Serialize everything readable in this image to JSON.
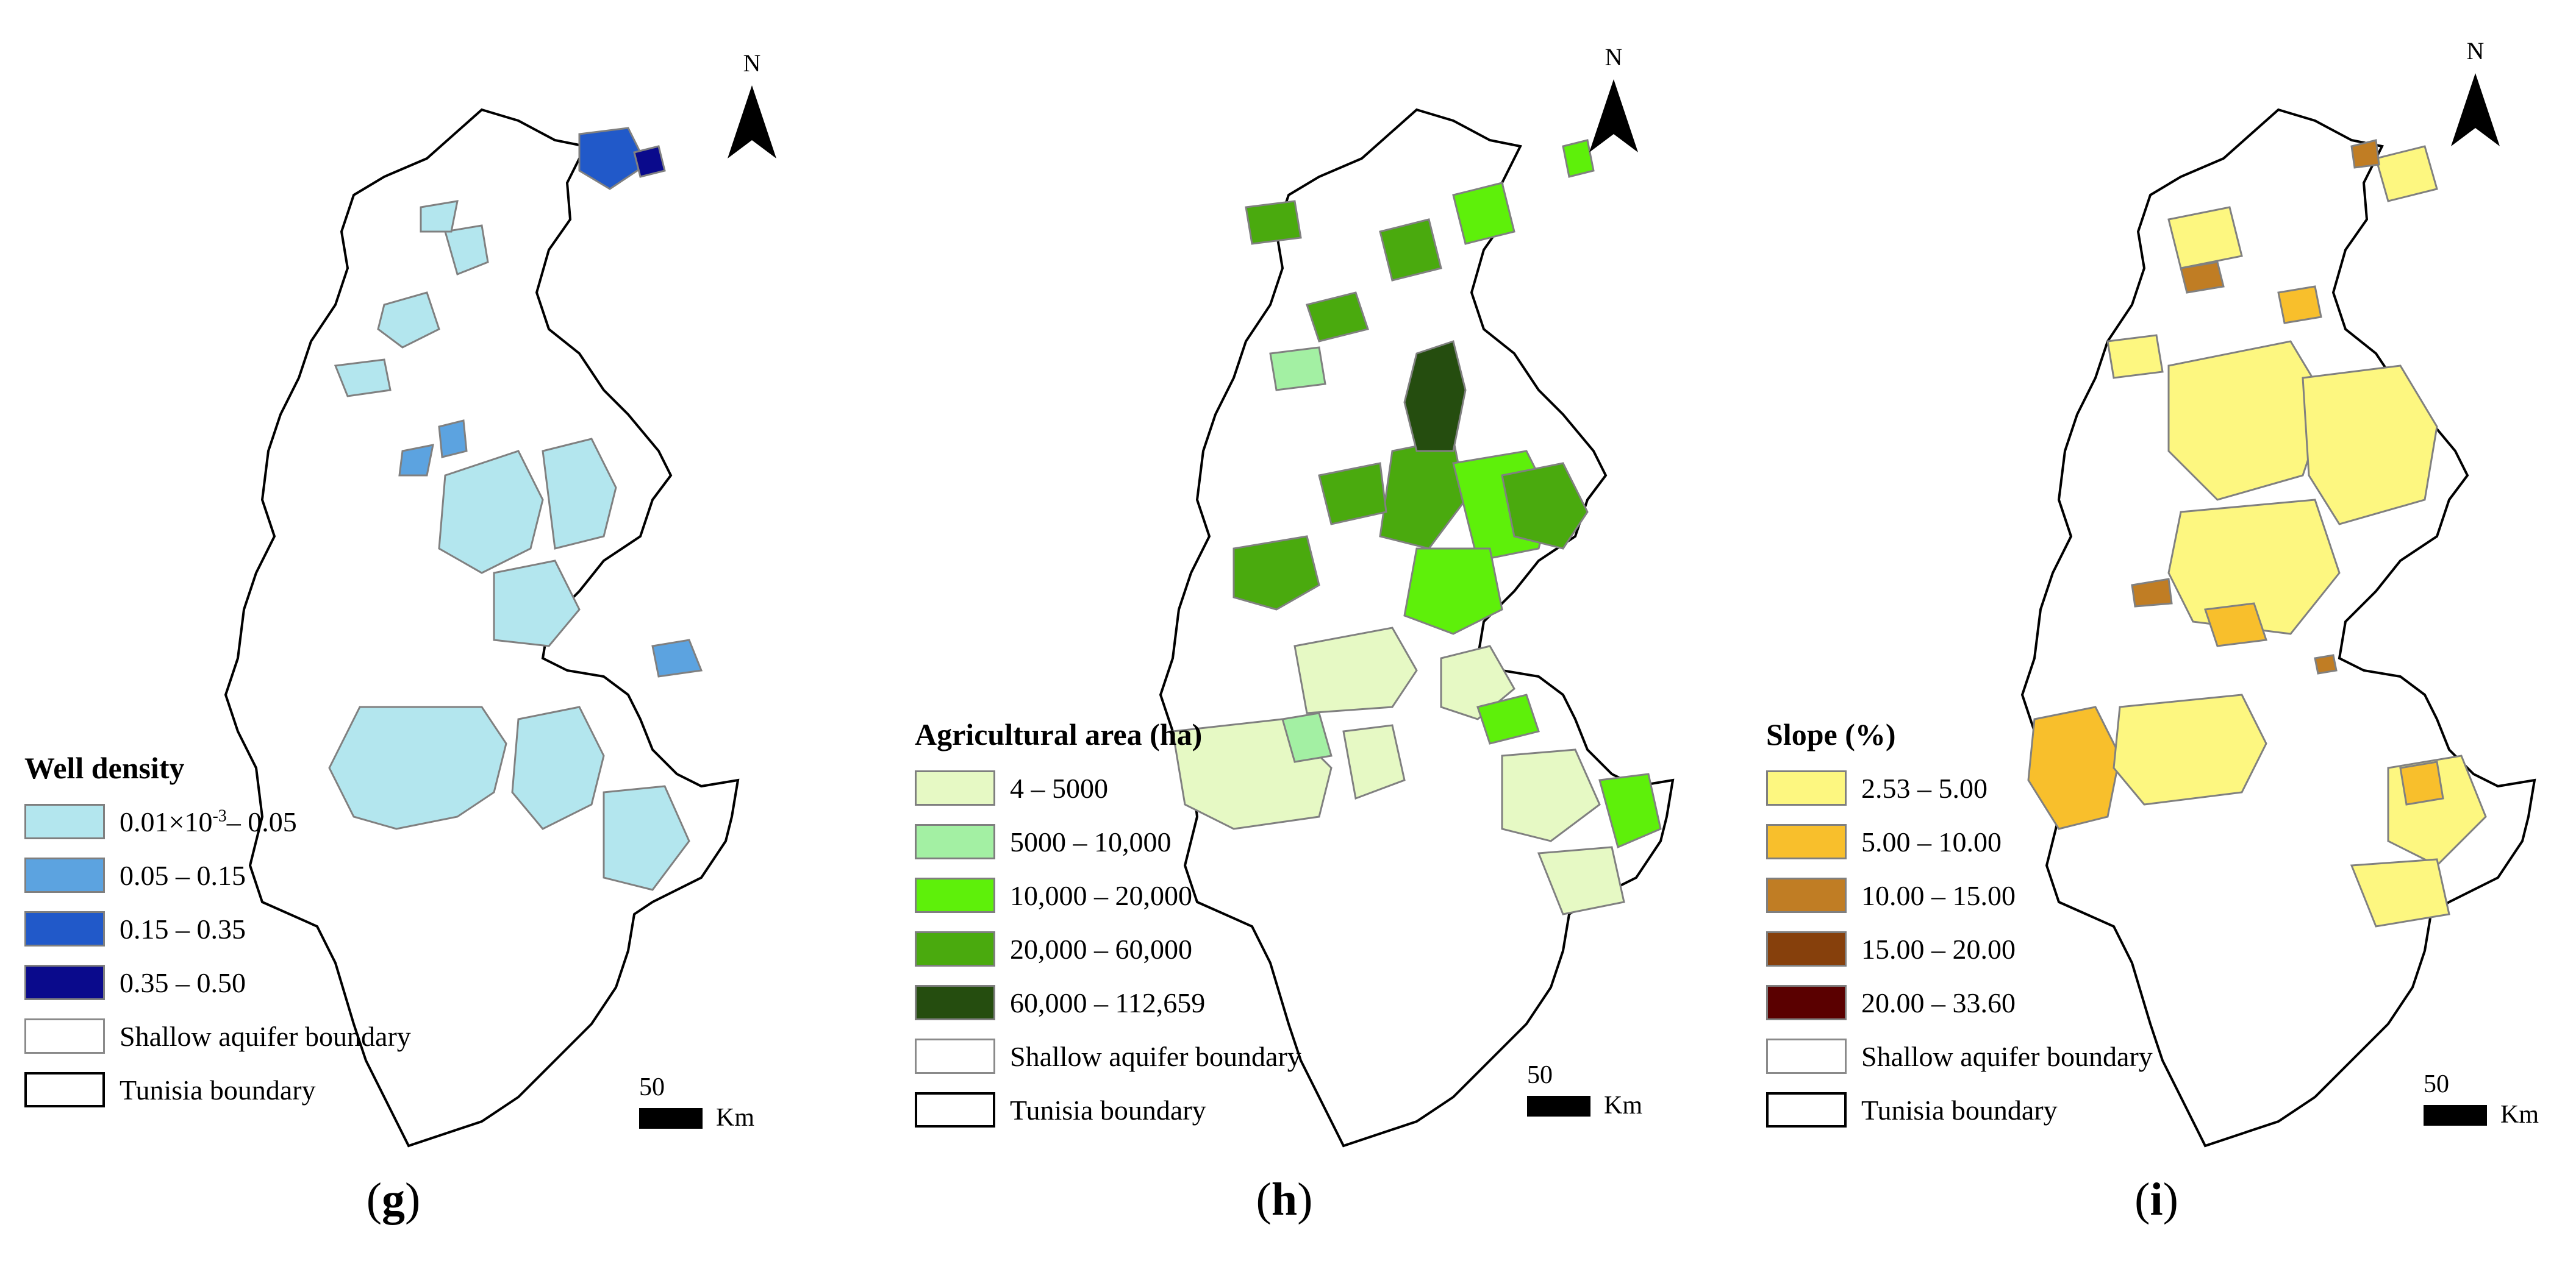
{
  "panels": {
    "g": {
      "label_open": "(",
      "label_letter": "g",
      "label_close": ")",
      "legend": {
        "title": "Well density",
        "items": [
          {
            "pre": "0.01×10",
            "sup": "-3",
            "post": "– 0.05",
            "color": "#b3e6ee"
          },
          {
            "label": "0.05 – 0.15",
            "color": "#5ca3e0"
          },
          {
            "label": "0.15 – 0.35",
            "color": "#2159c9"
          },
          {
            "label": "0.35 – 0.50",
            "color": "#0a0a8c"
          }
        ],
        "aquifer_label": "Shallow aquifer boundary",
        "tunisia_label": "Tunisia boundary"
      },
      "north": "N",
      "scale_number": "50",
      "scale_unit": "Km"
    },
    "h": {
      "label_open": "(",
      "label_letter": "h",
      "label_close": ")",
      "legend": {
        "title": "Agricultural area (ha)",
        "items": [
          {
            "label": "4 – 5000",
            "color": "#e6f9c4"
          },
          {
            "label": "5000 – 10,000",
            "color": "#a3f0a3"
          },
          {
            "label": "10,000 – 20,000",
            "color": "#5ef00a"
          },
          {
            "label": "20,000 – 60,000",
            "color": "#4aaa0e"
          },
          {
            "label": "60,000 – 112,659",
            "color": "#254d0f"
          }
        ],
        "aquifer_label": "Shallow aquifer boundary",
        "tunisia_label": "Tunisia boundary"
      },
      "north": "N",
      "scale_number": "50",
      "scale_unit": "Km"
    },
    "i": {
      "label_open": "(",
      "label_letter": "i",
      "label_close": ")",
      "legend": {
        "title": "Slope (%)",
        "items": [
          {
            "label": "2.53 – 5.00",
            "color": "#fdf780"
          },
          {
            "label": "5.00 – 10.00",
            "color": "#f8bf2c"
          },
          {
            "label": "10.00 – 15.00",
            "color": "#c07d24"
          },
          {
            "label": "15.00 – 20.00",
            "color": "#86400c"
          },
          {
            "label": "20.00 – 33.60",
            "color": "#5a0000"
          }
        ],
        "aquifer_label": "Shallow aquifer boundary",
        "tunisia_label": "Tunisia boundary"
      },
      "north": "N",
      "scale_number": "50",
      "scale_unit": "Km"
    }
  }
}
